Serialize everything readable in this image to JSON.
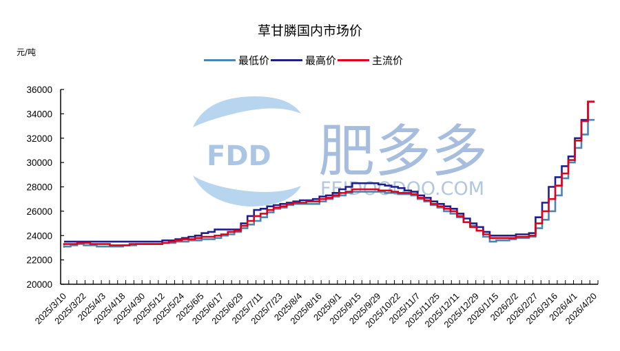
{
  "chart_data": {
    "type": "line",
    "title": "草甘膦国内市场价",
    "ylabel": "元/吨",
    "xlabel": "",
    "ylim": [
      20000,
      36000
    ],
    "yticks": [
      20000,
      22000,
      24000,
      26000,
      28000,
      30000,
      32000,
      34000,
      36000
    ],
    "grid": false,
    "legend_position": "top",
    "x_tick_labels": [
      "2025/3/10",
      "2025/3/22",
      "2025/4/3",
      "2025/4/18",
      "2025/4/30",
      "2025/5/12",
      "2025/5/24",
      "2025/6/5",
      "2025/6/17",
      "2025/6/29",
      "2025/7/11",
      "2025/7/23",
      "2025/8/4",
      "2025/8/16",
      "2025/9/1",
      "2025/9/15",
      "2025/9/29",
      "2025/10/22",
      "2025/11/7",
      "2025/11/25",
      "2025/12/11",
      "2025/12/29",
      "2026/1/15",
      "2026/2/2",
      "2026/2/27",
      "2026/3/16",
      "2026/4/1",
      "2026/4/20"
    ],
    "series": [
      {
        "name": "最低价",
        "color": "#4a86b0",
        "values": [
          23000,
          23300,
          23100,
          23100,
          23300,
          23300,
          23500,
          23600,
          23800,
          24300,
          25200,
          26200,
          26600,
          26600,
          27200,
          27600,
          27600,
          27500,
          27300,
          26500,
          25800,
          24800,
          23500,
          23700,
          23900,
          26000,
          30000,
          33500
        ]
      },
      {
        "name": "最高价",
        "color": "#1f1f8a",
        "values": [
          23500,
          23500,
          23500,
          23500,
          23500,
          23500,
          23700,
          24000,
          24500,
          24500,
          26100,
          26500,
          26800,
          27000,
          27500,
          28300,
          28300,
          28000,
          27600,
          26800,
          26200,
          25000,
          24000,
          24000,
          24200,
          28000,
          30500,
          35000
        ]
      },
      {
        "name": "主流价",
        "color": "#e0001b",
        "values": [
          23200,
          23400,
          23300,
          23200,
          23300,
          23300,
          23600,
          23800,
          24000,
          24400,
          25600,
          26300,
          26700,
          26800,
          27300,
          27800,
          27800,
          27600,
          27400,
          26600,
          26000,
          24700,
          23800,
          23800,
          24000,
          27000,
          30200,
          35000
        ]
      }
    ]
  },
  "watermark": {
    "logo_text": "FDD",
    "brand_cn": "肥多多",
    "brand_url": "FEIDOODOO.COM"
  }
}
